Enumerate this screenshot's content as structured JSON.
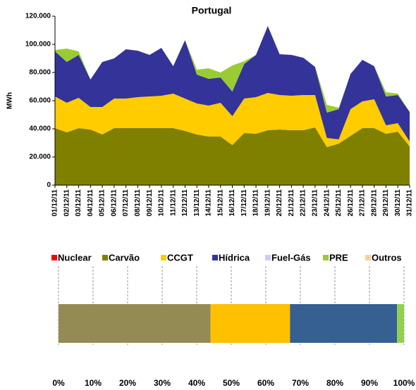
{
  "chart_data": [
    {
      "type": "area",
      "stacked": true,
      "title": "Portugal",
      "y_label": "MWh",
      "categories": [
        "01/12/11",
        "02/12/11",
        "03/12/11",
        "04/12/11",
        "05/12/11",
        "06/12/11",
        "07/12/11",
        "08/12/11",
        "09/12/11",
        "10/12/11",
        "11/12/11",
        "12/12/11",
        "13/12/11",
        "14/12/11",
        "15/12/11",
        "16/12/11",
        "17/12/11",
        "18/12/11",
        "19/12/11",
        "20/12/11",
        "21/12/11",
        "22/12/11",
        "23/12/11",
        "24/12/11",
        "25/12/11",
        "26/12/11",
        "27/12/11",
        "28/12/11",
        "29/12/11",
        "30/12/11",
        "31/12/11"
      ],
      "series": [
        {
          "name": "Nuclear",
          "color": "#ff0000",
          "values": [
            0,
            0,
            0,
            0,
            0,
            0,
            0,
            0,
            0,
            0,
            0,
            0,
            0,
            0,
            0,
            0,
            0,
            0,
            0,
            0,
            0,
            0,
            0,
            0,
            0,
            0,
            0,
            0,
            0,
            0,
            0
          ]
        },
        {
          "name": "Carvão",
          "color": "#808000",
          "values": [
            40500,
            37500,
            40500,
            39500,
            36000,
            40500,
            40500,
            40500,
            40500,
            40500,
            40500,
            38500,
            36000,
            34500,
            34500,
            28500,
            37000,
            36500,
            39000,
            39500,
            39000,
            39000,
            41000,
            27000,
            29500,
            35000,
            40500,
            40500,
            36500,
            38000,
            27500
          ]
        },
        {
          "name": "CCGT",
          "color": "#ffcc00",
          "values": [
            22500,
            21000,
            21500,
            16000,
            19500,
            21000,
            21000,
            22000,
            22500,
            23000,
            24500,
            23000,
            22000,
            22000,
            24000,
            20500,
            24500,
            26000,
            26500,
            24500,
            24500,
            25000,
            23000,
            6500,
            3000,
            19000,
            19000,
            20500,
            6000,
            6000,
            3500
          ]
        },
        {
          "name": "Hídrica",
          "color": "#333399",
          "values": [
            32000,
            29000,
            30500,
            19500,
            32000,
            28500,
            35000,
            33000,
            29500,
            34000,
            19500,
            41500,
            20500,
            19000,
            18000,
            17500,
            24500,
            30000,
            47500,
            29000,
            29000,
            26500,
            20000,
            18000,
            21500,
            25000,
            29500,
            23500,
            20500,
            20000,
            21000
          ]
        },
        {
          "name": "Fuel-Gás",
          "color": "#ccccff",
          "values": [
            0,
            0,
            0,
            0,
            0,
            0,
            0,
            0,
            0,
            0,
            0,
            0,
            0,
            0,
            0,
            0,
            0,
            0,
            0,
            0,
            0,
            0,
            0,
            0,
            0,
            0,
            0,
            0,
            0,
            0,
            0
          ]
        },
        {
          "name": "PRE",
          "color": "#99cc33",
          "values": [
            1000,
            9500,
            2500,
            0,
            0,
            0,
            0,
            0,
            0,
            0,
            0,
            0,
            3500,
            7500,
            3500,
            18500,
            2000,
            0,
            0,
            0,
            0,
            0,
            0,
            5500,
            1000,
            0,
            0,
            0,
            3000,
            1000,
            0
          ]
        },
        {
          "name": "Outros",
          "color": "#ffcc99",
          "values": [
            0,
            0,
            0,
            0,
            0,
            0,
            0,
            0,
            0,
            0,
            0,
            0,
            0,
            0,
            0,
            0,
            0,
            0,
            0,
            0,
            0,
            0,
            0,
            0,
            0,
            0,
            0,
            0,
            0,
            0,
            0
          ]
        }
      ],
      "ylim": [
        0,
        120000
      ],
      "yticks": [
        {
          "value": 0,
          "label": "0"
        },
        {
          "value": 20000,
          "label": "20.000"
        },
        {
          "value": 40000,
          "label": "40.000"
        },
        {
          "value": 60000,
          "label": "60.000"
        },
        {
          "value": 80000,
          "label": "80.000"
        },
        {
          "value": 100000,
          "label": "100.000"
        },
        {
          "value": 120000,
          "label": "120.000"
        }
      ]
    },
    {
      "type": "bar",
      "horizontal": true,
      "stacked": true,
      "grid": true,
      "series": [
        {
          "color": "#ff0000",
          "values": [
            0
          ]
        },
        {
          "color": "#948a54",
          "values": [
            44
          ]
        },
        {
          "color": "#ffc000",
          "values": [
            23
          ]
        },
        {
          "color": "#376092",
          "values": [
            31
          ]
        },
        {
          "color": "#ccccff",
          "values": [
            0
          ]
        },
        {
          "color": "#92d050",
          "values": [
            2
          ]
        },
        {
          "color": "#fac090",
          "values": [
            0
          ]
        }
      ],
      "xlim": [
        0,
        100
      ],
      "xticks": [
        {
          "value": 0,
          "label": "0%"
        },
        {
          "value": 10,
          "label": "10%"
        },
        {
          "value": 20,
          "label": "20%"
        },
        {
          "value": 30,
          "label": "30%"
        },
        {
          "value": 40,
          "label": "40%"
        },
        {
          "value": 50,
          "label": "50%"
        },
        {
          "value": 60,
          "label": "60%"
        },
        {
          "value": 70,
          "label": "70%"
        },
        {
          "value": 80,
          "label": "80%"
        },
        {
          "value": 90,
          "label": "90%"
        },
        {
          "value": 100,
          "label": "100%"
        }
      ]
    }
  ]
}
